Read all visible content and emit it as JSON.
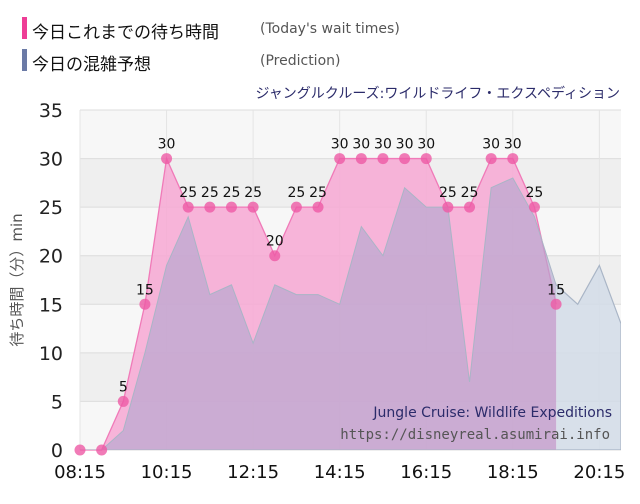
{
  "legend": [
    {
      "label": "今日これまでの待ち時間",
      "note": "(Today's wait times)",
      "color": "#ee3d96"
    },
    {
      "label": "今日の混雑予想",
      "note": "(Prediction)",
      "color": "#6b7aa6"
    }
  ],
  "subtitle": "ジャングルクルーズ:ワイルドライフ・エクスペディション",
  "watermark": {
    "title_en": "Jungle Cruise: Wildlife Expeditions",
    "url": "https://disneyreal.asumirai.info"
  },
  "colors": {
    "actual_fill": "#f7a8d3",
    "actual_line": "#f07ab8",
    "marker": "#ee5aa5",
    "prediction_fill": "#b3a7cf",
    "prediction_tail_fill": "#d2dce8",
    "prediction_line": "#a9b5c6",
    "plot_bg_light": "#f7f7f7",
    "plot_bg_dark": "#efefef"
  },
  "chart_data": {
    "type": "area",
    "ylabel": "待ち時間（分）min",
    "ylim": [
      0,
      35
    ],
    "yticks": [
      0,
      5,
      10,
      15,
      20,
      25,
      30,
      35
    ],
    "xlim": [
      "08:15",
      "20:45"
    ],
    "xticks": [
      "08:15",
      "10:15",
      "12:15",
      "14:15",
      "16:15",
      "18:15",
      "20:15"
    ],
    "grid": true,
    "series": [
      {
        "name": "今日これまでの待ち時間",
        "points": [
          [
            "08:15",
            0
          ],
          [
            "08:45",
            0
          ],
          [
            "09:15",
            5
          ],
          [
            "09:45",
            15
          ],
          [
            "10:15",
            30
          ],
          [
            "10:45",
            25
          ],
          [
            "11:15",
            25
          ],
          [
            "11:45",
            25
          ],
          [
            "12:15",
            25
          ],
          [
            "12:45",
            20
          ],
          [
            "13:15",
            25
          ],
          [
            "13:45",
            25
          ],
          [
            "14:15",
            30
          ],
          [
            "14:45",
            30
          ],
          [
            "15:15",
            30
          ],
          [
            "15:45",
            30
          ],
          [
            "16:15",
            30
          ],
          [
            "16:45",
            25
          ],
          [
            "17:15",
            25
          ],
          [
            "17:45",
            30
          ],
          [
            "18:15",
            30
          ],
          [
            "18:45",
            25
          ],
          [
            "19:15",
            15
          ]
        ],
        "labels": [
          [
            "09:15",
            "5"
          ],
          [
            "09:45",
            "15"
          ],
          [
            "10:15",
            "30"
          ],
          [
            "10:45",
            "25"
          ],
          [
            "11:15",
            "25"
          ],
          [
            "11:45",
            "25"
          ],
          [
            "12:15",
            "25"
          ],
          [
            "12:45",
            "20"
          ],
          [
            "13:15",
            "25"
          ],
          [
            "13:45",
            "25"
          ],
          [
            "14:15",
            "30"
          ],
          [
            "14:45",
            "30"
          ],
          [
            "15:15",
            "30"
          ],
          [
            "15:45",
            "30"
          ],
          [
            "16:15",
            "30"
          ],
          [
            "16:45",
            "25"
          ],
          [
            "17:15",
            "25"
          ],
          [
            "17:45",
            "30"
          ],
          [
            "18:15",
            "30"
          ],
          [
            "18:45",
            "25"
          ],
          [
            "19:15",
            "15"
          ]
        ]
      },
      {
        "name": "今日の混雑予想",
        "points": [
          [
            "08:15",
            0
          ],
          [
            "08:45",
            0
          ],
          [
            "09:15",
            2
          ],
          [
            "09:45",
            10
          ],
          [
            "10:15",
            19
          ],
          [
            "10:45",
            24
          ],
          [
            "11:15",
            16
          ],
          [
            "11:45",
            17
          ],
          [
            "12:15",
            11
          ],
          [
            "12:45",
            17
          ],
          [
            "13:15",
            16
          ],
          [
            "13:45",
            16
          ],
          [
            "14:15",
            15
          ],
          [
            "14:45",
            23
          ],
          [
            "15:15",
            20
          ],
          [
            "15:45",
            27
          ],
          [
            "16:15",
            25
          ],
          [
            "16:45",
            25
          ],
          [
            "17:15",
            7
          ],
          [
            "17:45",
            27
          ],
          [
            "18:15",
            28
          ],
          [
            "18:45",
            24
          ],
          [
            "19:15",
            17
          ],
          [
            "19:45",
            15
          ],
          [
            "20:15",
            19
          ],
          [
            "20:45",
            13
          ]
        ]
      }
    ]
  }
}
